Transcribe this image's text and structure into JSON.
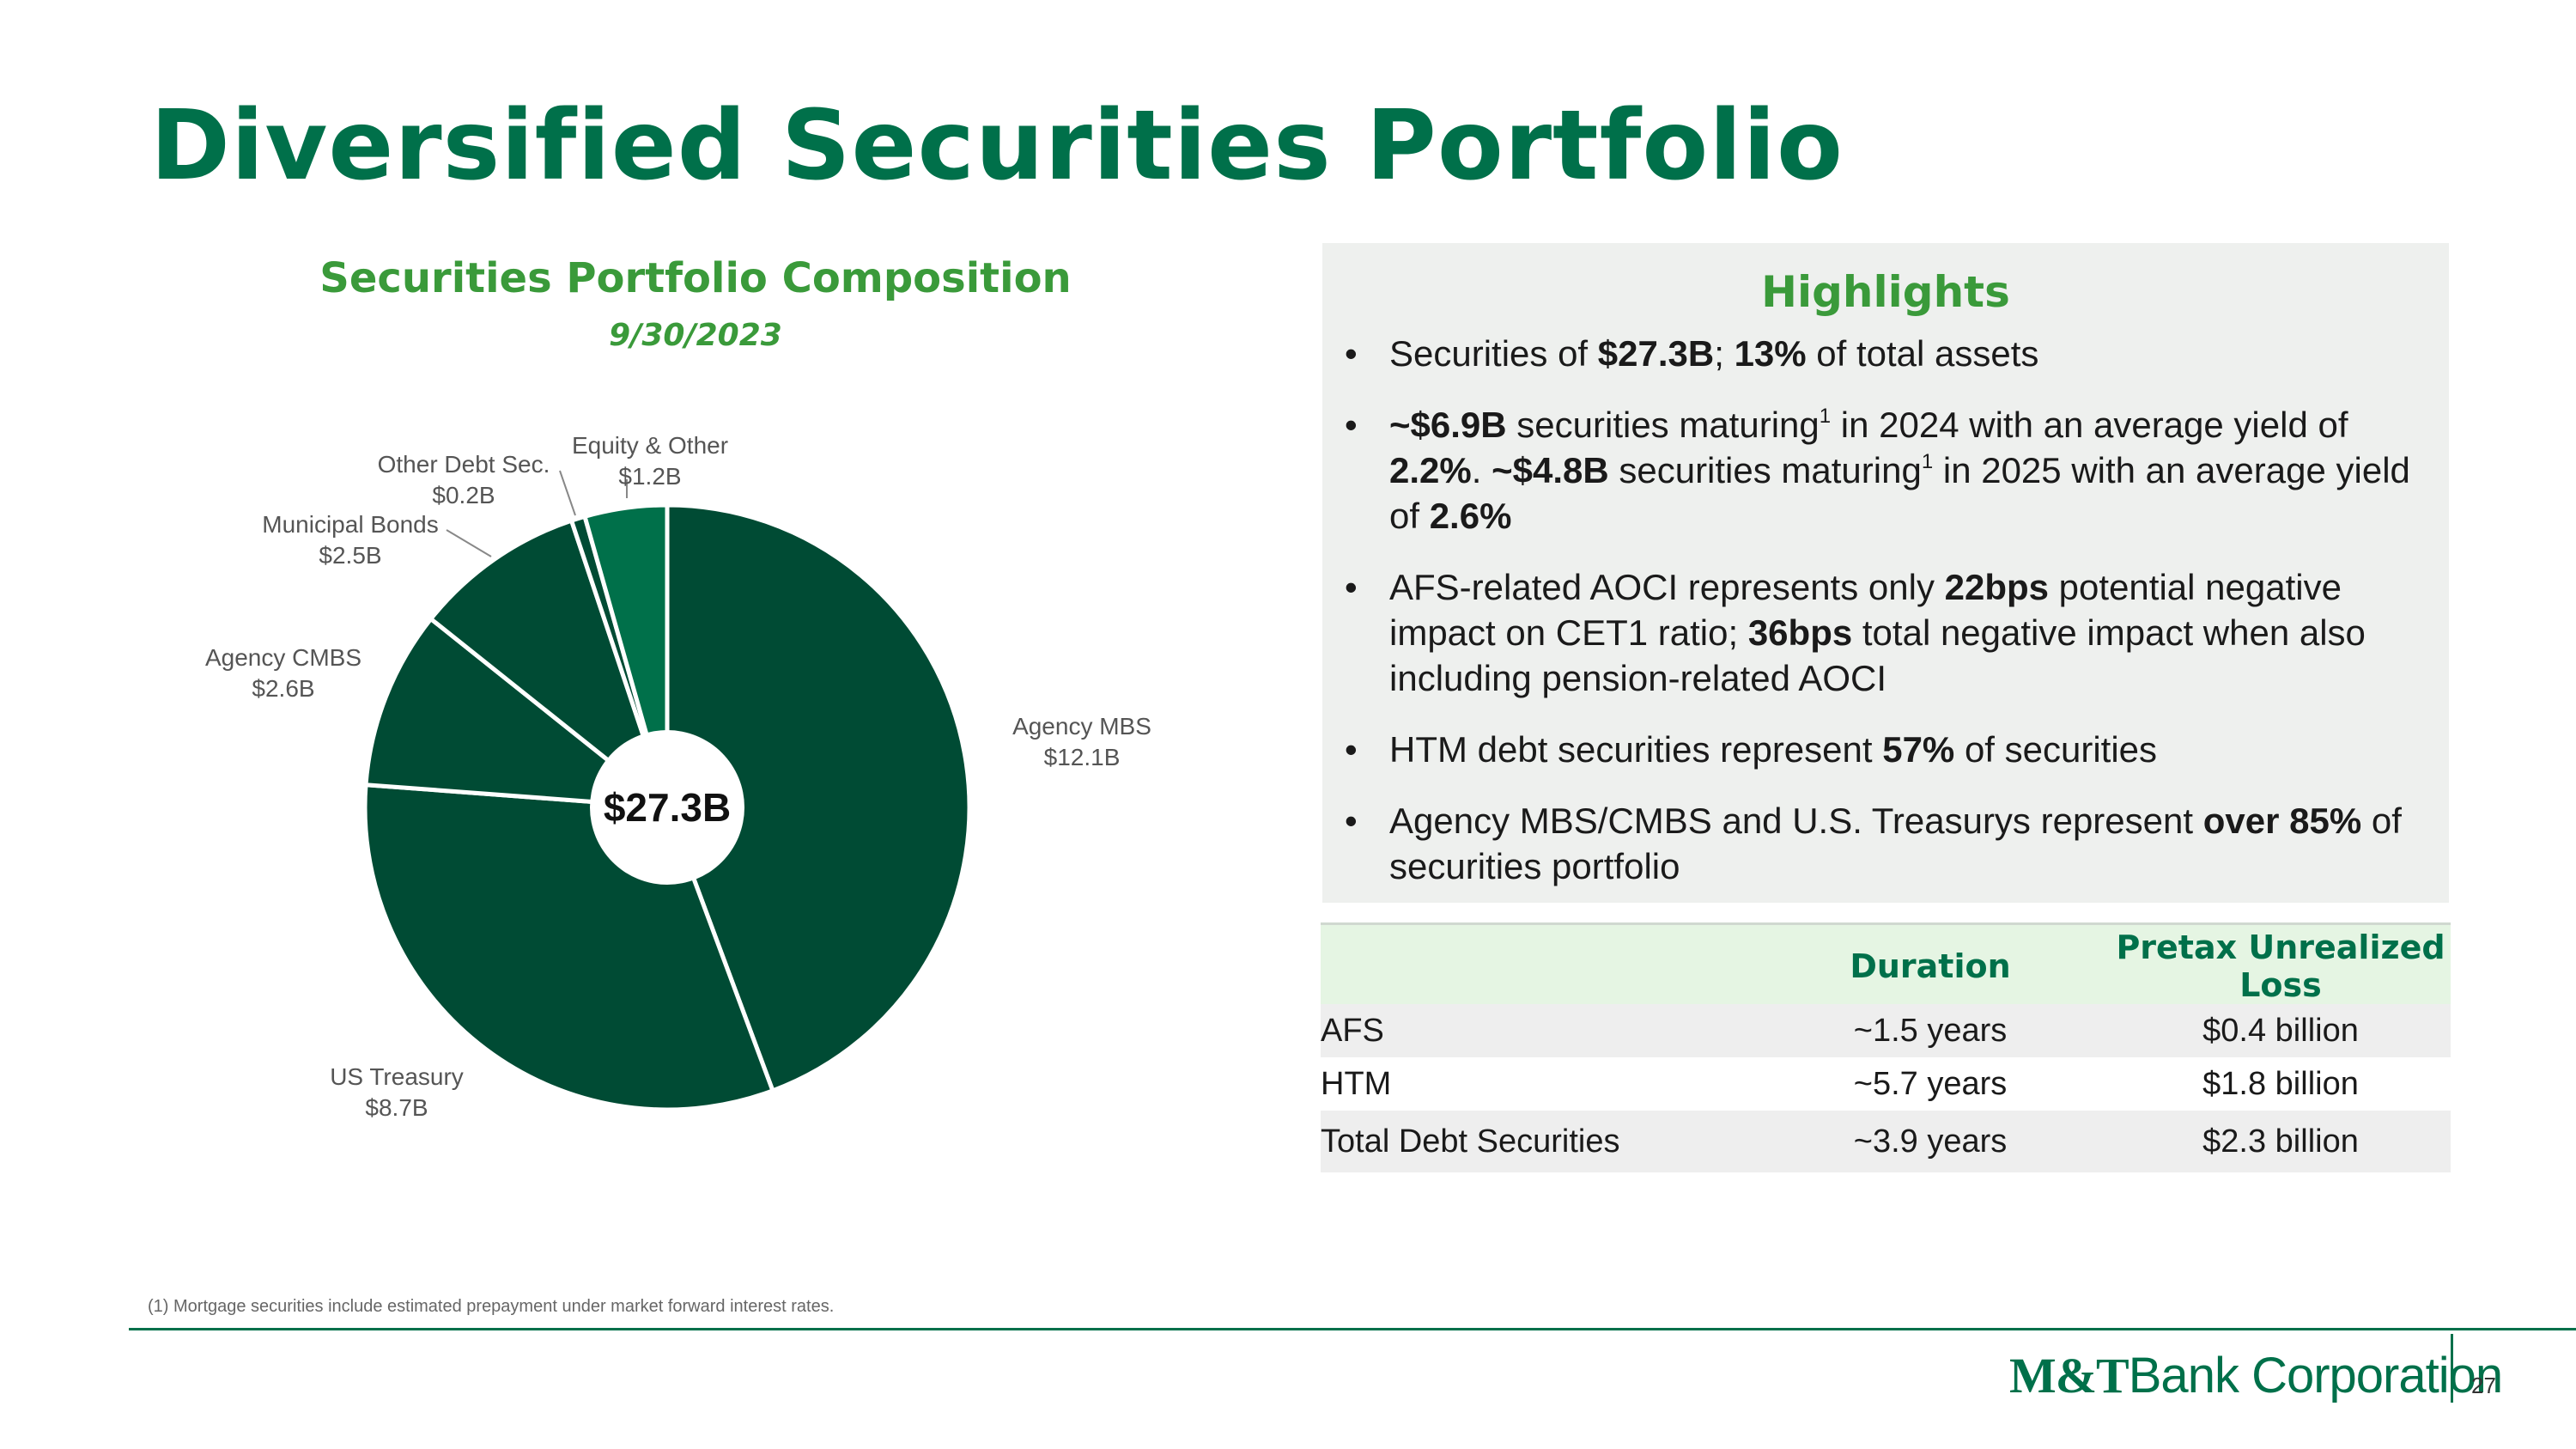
{
  "title": "Diversified Securities Portfolio",
  "chart_data": {
    "type": "pie",
    "title": "Securities Portfolio Composition",
    "subtitle": "9/30/2023",
    "center_label": "$27.3B",
    "unit": "$B",
    "slices": [
      {
        "name": "Agency MBS",
        "value": 12.1,
        "label": "$12.1B",
        "color": "#004b34"
      },
      {
        "name": "US Treasury",
        "value": 8.7,
        "label": "$8.7B",
        "color": "#004b34"
      },
      {
        "name": "Agency CMBS",
        "value": 2.6,
        "label": "$2.6B",
        "color": "#004b34"
      },
      {
        "name": "Municipal Bonds",
        "value": 2.5,
        "label": "$2.5B",
        "color": "#004b34"
      },
      {
        "name": "Other Debt Sec.",
        "value": 0.2,
        "label": "$0.2B",
        "color": "#004b34"
      },
      {
        "name": "Equity & Other",
        "value": 1.2,
        "label": "$1.2B",
        "color": "#00704a"
      }
    ]
  },
  "highlights": {
    "title": "Highlights",
    "b1": {
      "t1": "Securities of ",
      "v1": "$27.3B",
      "t2": "; ",
      "v2": "13%",
      "t3": " of total assets"
    },
    "b2": {
      "v1": "~$6.9B",
      "t1": " securities maturing",
      "sup1": "1",
      "t2": " in 2024 with an average yield of ",
      "v2": "2.2%",
      "t3": ". ",
      "v3": "~$4.8B",
      "t4": " securities maturing",
      "sup2": "1",
      "t5": " in 2025 with an average yield of ",
      "v4": "2.6%"
    },
    "b3": {
      "t1": "AFS-related AOCI represents only ",
      "v1": "22bps",
      "t2": " potential negative impact on CET1 ratio; ",
      "v2": "36bps",
      "t3": " total negative impact when also including pension-related AOCI"
    },
    "b4": {
      "t1": "HTM debt securities represent ",
      "v1": "57%",
      "t2": " of securities"
    },
    "b5": {
      "t1": "Agency MBS/CMBS and U.S. Treasurys represent ",
      "v1": "over 85%",
      "t2": " of securities portfolio"
    }
  },
  "table": {
    "headers": [
      "",
      "Duration",
      "Pretax Unrealized Loss"
    ],
    "rows": [
      [
        "AFS",
        "~1.5 years",
        "$0.4 billion"
      ],
      [
        "HTM",
        "~5.7 years",
        "$1.8 billion"
      ],
      [
        "Total Debt Securities",
        "~3.9 years",
        "$2.3 billion"
      ]
    ]
  },
  "footnote": "(1) Mortgage securities include estimated prepayment under market forward interest rates.",
  "logo": {
    "bold": "M&T",
    "light": "Bank Corporation"
  },
  "page_number": "27"
}
